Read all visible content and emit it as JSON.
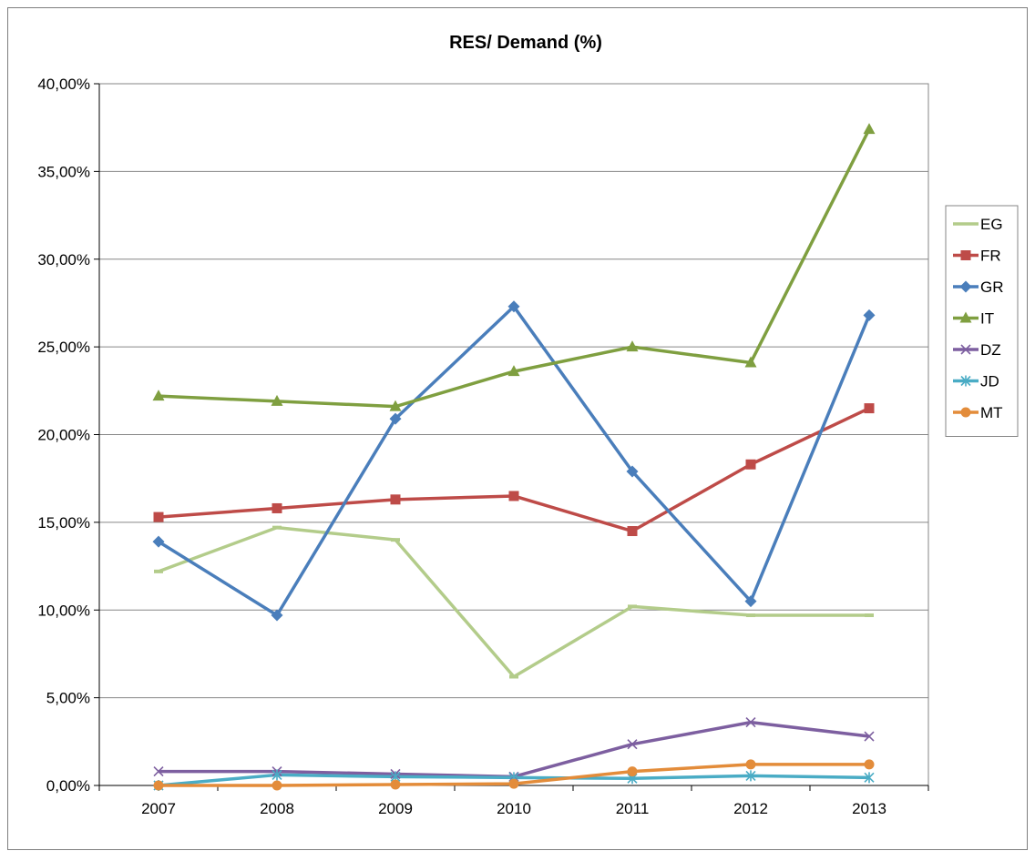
{
  "chart_data": {
    "type": "line",
    "title": "RES/ Demand (%)",
    "xlabel": "",
    "ylabel": "",
    "categories": [
      "2007",
      "2008",
      "2009",
      "2010",
      "2011",
      "2012",
      "2013"
    ],
    "ylim": [
      0,
      40
    ],
    "yticks": [
      0,
      5,
      10,
      15,
      20,
      25,
      30,
      35,
      40
    ],
    "ytick_labels": [
      "0,00%",
      "5,00%",
      "10,00%",
      "15,00%",
      "20,00%",
      "25,00%",
      "30,00%",
      "35,00%",
      "40,00%"
    ],
    "grid": true,
    "legend_position": "right",
    "series": [
      {
        "name": "EG",
        "color": "#b3cc8a",
        "marker": "dash",
        "values": [
          12.2,
          14.7,
          14.0,
          6.2,
          10.2,
          9.7,
          9.7
        ]
      },
      {
        "name": "FR",
        "color": "#be4b48",
        "marker": "square",
        "values": [
          15.3,
          15.8,
          16.3,
          16.5,
          14.5,
          18.3,
          21.5
        ]
      },
      {
        "name": "GR",
        "color": "#4a7ebb",
        "marker": "diamond",
        "values": [
          13.9,
          9.7,
          20.9,
          27.3,
          17.9,
          10.5,
          26.8
        ]
      },
      {
        "name": "IT",
        "color": "#7f9f40",
        "marker": "triangle",
        "values": [
          22.2,
          21.9,
          21.6,
          23.6,
          25.0,
          24.1,
          37.4
        ]
      },
      {
        "name": "DZ",
        "color": "#7d5fa0",
        "marker": "x",
        "values": [
          0.8,
          0.8,
          0.65,
          0.5,
          2.35,
          3.6,
          2.8
        ]
      },
      {
        "name": "JD",
        "color": "#4aacc5",
        "marker": "star",
        "values": [
          0.0,
          0.6,
          0.5,
          0.45,
          0.4,
          0.55,
          0.45
        ]
      },
      {
        "name": "MT",
        "color": "#e38c3a",
        "marker": "circle",
        "values": [
          0.0,
          0.0,
          0.05,
          0.1,
          0.8,
          1.2,
          1.2
        ]
      }
    ]
  }
}
